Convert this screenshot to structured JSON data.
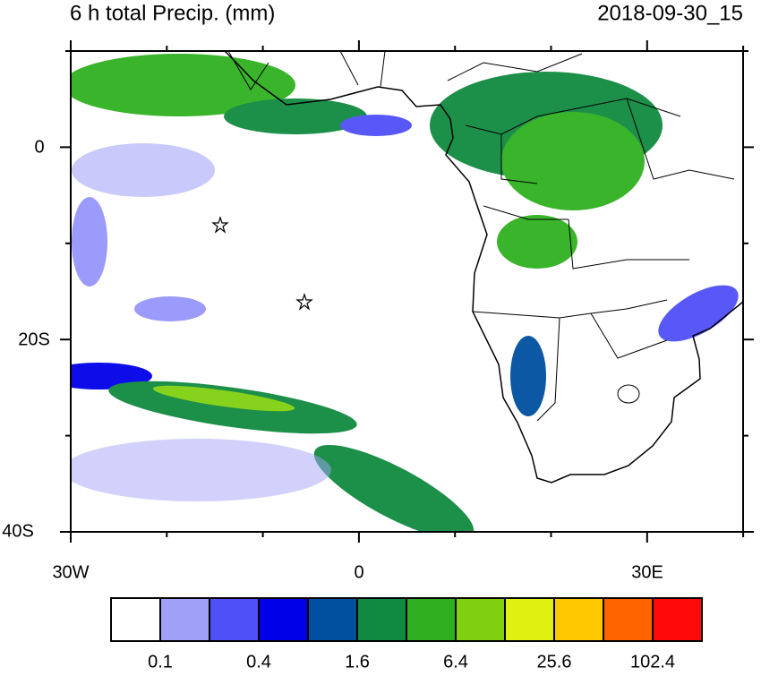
{
  "header": {
    "title": "6 h total Precip. (mm)",
    "time": "2018-09-30_15"
  },
  "map": {
    "lat_labels": [
      "0",
      "20S",
      "40S"
    ],
    "lon_labels": [
      "30W",
      "0",
      "30E"
    ]
  },
  "colorbar": {
    "colors": [
      "#ffffff",
      "#a0a0f8",
      "#5050f8",
      "#0000e8",
      "#0050a0",
      "#108a40",
      "#30b020",
      "#80d010",
      "#e0f010",
      "#ffc800",
      "#ff6400",
      "#ff0a0a"
    ],
    "labels": [
      "0.1",
      "0.4",
      "1.6",
      "6.4",
      "25.6",
      "102.4"
    ]
  }
}
